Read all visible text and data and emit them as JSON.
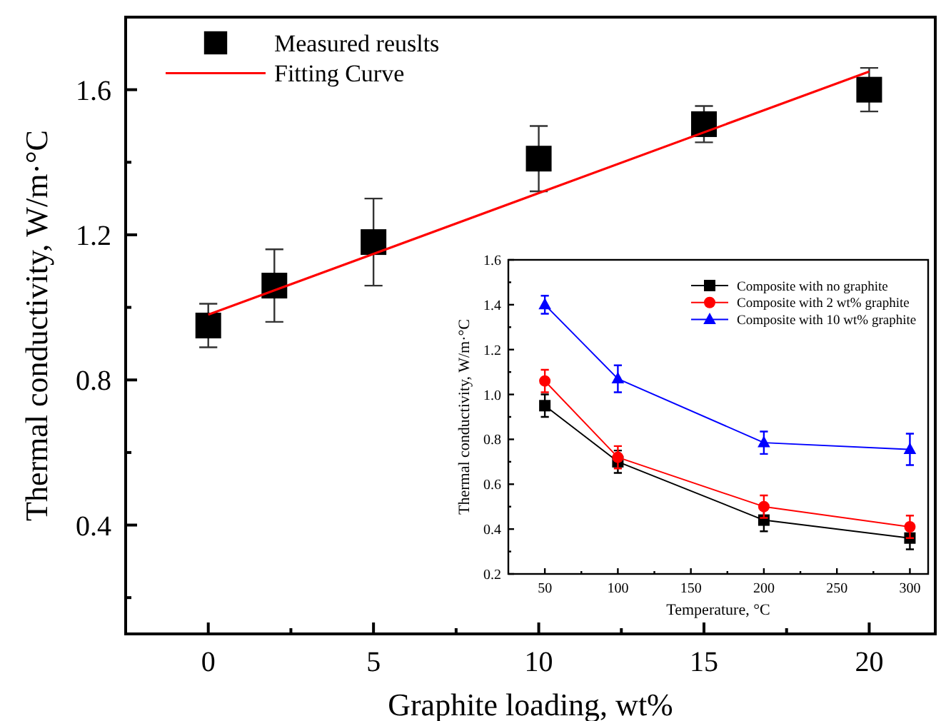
{
  "chart_data": [
    {
      "type": "scatter",
      "xlabel": "Graphite loading, wt%",
      "ylabel": "Thermal conductivity, W/m·°C",
      "xlim": [
        -2.5,
        22
      ],
      "ylim": [
        0.1,
        1.8
      ],
      "xticks": [
        0,
        {
          "value": 2.5,
          "label": null
        },
        5,
        {
          "value": 7.5,
          "label": null
        },
        10,
        {
          "value": 12.5,
          "label": null
        },
        15,
        {
          "value": 17.5,
          "label": null
        },
        20
      ],
      "yticks": [
        {
          "value": 0.2,
          "label": null
        },
        0.4,
        {
          "value": 0.6,
          "label": null
        },
        0.8,
        {
          "value": 1.0,
          "label": null
        },
        1.2,
        {
          "value": 1.4,
          "label": null
        },
        1.6
      ],
      "legend": "top left",
      "grid": false,
      "series": [
        {
          "name": "Measured reuslts",
          "marker": "square",
          "color": "#000000",
          "x": [
            0,
            2,
            5,
            10,
            15,
            20
          ],
          "values": [
            0.95,
            1.06,
            1.18,
            1.41,
            1.505,
            1.6
          ],
          "errors": [
            0.06,
            0.1,
            0.12,
            0.09,
            0.05,
            0.06
          ]
        },
        {
          "name": "Fitting Curve",
          "type": "line",
          "marker": "none",
          "color": "#ff0000",
          "x": [
            0,
            20
          ],
          "values": [
            0.98,
            1.65
          ]
        }
      ]
    },
    {
      "type": "line",
      "xlabel": "Temperature, °C",
      "ylabel": "Thermal conductivity, W/m·°C",
      "xlim": [
        25,
        312.5
      ],
      "ylim": [
        0.2,
        1.6
      ],
      "xticks": [
        50,
        {
          "value": 75,
          "label": null
        },
        100,
        {
          "value": 125,
          "label": null
        },
        150,
        {
          "value": 175,
          "label": null
        },
        200,
        {
          "value": 225,
          "label": null
        },
        250,
        {
          "value": 275,
          "label": null
        },
        300
      ],
      "yticks": [
        0.2,
        {
          "value": 0.3,
          "label": null
        },
        0.4,
        {
          "value": 0.5,
          "label": null
        },
        0.6,
        {
          "value": 0.7,
          "label": null
        },
        0.8,
        {
          "value": 0.9,
          "label": null
        },
        {
          "value": 1.0,
          "label": "1.0"
        },
        {
          "value": 1.1,
          "label": null
        },
        1.2,
        {
          "value": 1.3,
          "label": null
        },
        1.4,
        {
          "value": 1.5,
          "label": null
        },
        1.6
      ],
      "legend": "top right",
      "grid": false,
      "series": [
        {
          "name": "Composite with no graphite",
          "marker": "square",
          "color": "#000000",
          "x": [
            50,
            100,
            200,
            300
          ],
          "values": [
            0.95,
            0.7,
            0.44,
            0.36
          ],
          "errors": [
            0.05,
            0.05,
            0.05,
            0.05
          ]
        },
        {
          "name": "Composite with 2 wt% graphite",
          "marker": "circle",
          "color": "#ff0000",
          "x": [
            50,
            100,
            200,
            300
          ],
          "values": [
            1.06,
            0.72,
            0.5,
            0.41
          ],
          "errors": [
            0.05,
            0.05,
            0.05,
            0.05
          ]
        },
        {
          "name": "Composite with 10 wt% graphite",
          "marker": "triangle",
          "color": "#0000ff",
          "x": [
            50,
            100,
            200,
            300
          ],
          "values": [
            1.4,
            1.07,
            0.785,
            0.755
          ],
          "errors": [
            0.04,
            0.06,
            0.05,
            0.07
          ]
        }
      ]
    }
  ]
}
